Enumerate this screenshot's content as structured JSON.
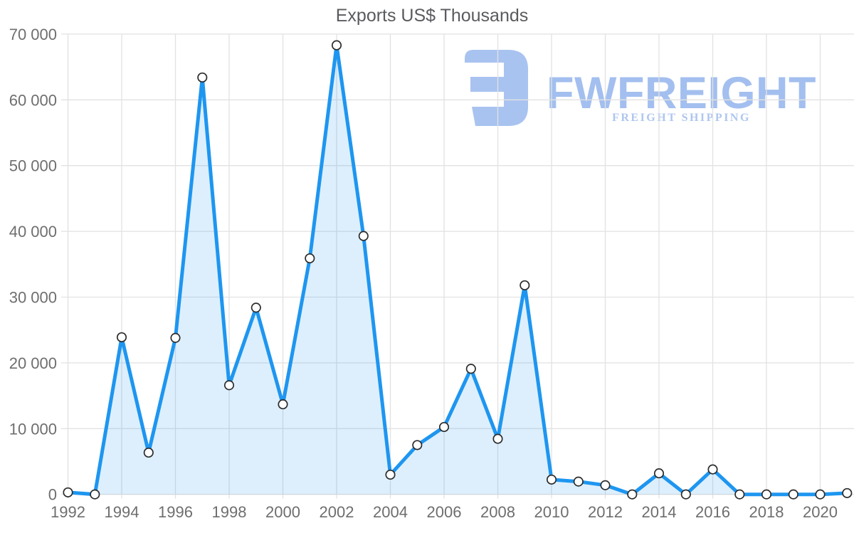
{
  "title": "Exports US$ Thousands",
  "logo": {
    "brand": "FWFREIGHT",
    "tagline": "FREIGHT SHIPPING",
    "icon_color": "#a9c3f0",
    "brand_color": "#a3bfef",
    "tagline_color": "#aec6f0"
  },
  "colors": {
    "line": "#1e96f0",
    "fill": "rgba(30,150,240,0.15)",
    "grid": "#e2e2e2",
    "label": "#6e6e6e",
    "title": "#595b5e",
    "marker_fill": "#ffffff",
    "marker_stroke": "#2b2b2b"
  },
  "chart_data": {
    "type": "area",
    "title": "Exports US$ Thousands",
    "xlabel": "",
    "ylabel": "",
    "x": [
      1992,
      1993,
      1994,
      1995,
      1996,
      1997,
      1998,
      1999,
      2000,
      2001,
      2002,
      2003,
      2004,
      2005,
      2006,
      2007,
      2008,
      2009,
      2010,
      2011,
      2012,
      2013,
      2014,
      2015,
      2016,
      2017,
      2018,
      2019,
      2020,
      2021
    ],
    "values": [
      300,
      0,
      23900,
      6350,
      23800,
      63400,
      16600,
      28400,
      13700,
      35900,
      68300,
      39300,
      3000,
      7500,
      10250,
      19100,
      8450,
      31800,
      2250,
      1950,
      1400,
      0,
      3200,
      0,
      3800,
      0,
      0,
      0,
      0,
      200
    ],
    "ylim": [
      0,
      70000
    ],
    "yticks": [
      0,
      10000,
      20000,
      30000,
      40000,
      50000,
      60000,
      70000
    ],
    "ytick_labels": [
      "0",
      "10 000",
      "20 000",
      "30 000",
      "40 000",
      "50 000",
      "60 000",
      "70 000"
    ],
    "xticks": [
      1992,
      1994,
      1996,
      1998,
      2000,
      2002,
      2004,
      2006,
      2008,
      2010,
      2012,
      2014,
      2016,
      2018,
      2020
    ],
    "grid": true,
    "legend": false,
    "marker": "circle-open"
  }
}
